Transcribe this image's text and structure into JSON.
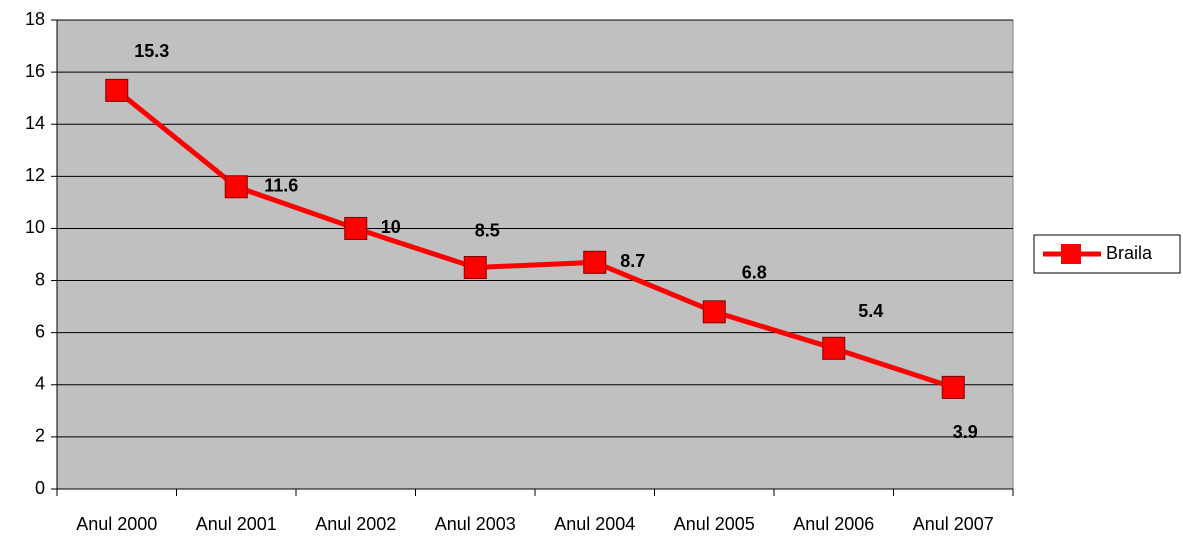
{
  "chart_data": {
    "type": "line",
    "categories": [
      "Anul 2000",
      "Anul 2001",
      "Anul 2002",
      "Anul 2003",
      "Anul 2004",
      "Anul 2005",
      "Anul 2006",
      "Anul 2007"
    ],
    "series": [
      {
        "name": "Braila",
        "color": "#ff0000",
        "values": [
          15.3,
          11.6,
          10,
          8.5,
          8.7,
          6.8,
          5.4,
          3.9
        ]
      }
    ],
    "ylim": [
      0,
      18
    ],
    "yticks": [
      0,
      2,
      4,
      6,
      8,
      10,
      12,
      14,
      16,
      18
    ],
    "grid": true,
    "legend": "right"
  }
}
